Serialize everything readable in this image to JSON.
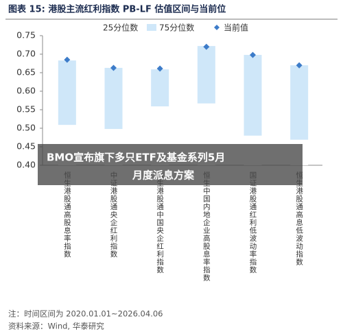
{
  "chart_data": {
    "type": "range_bar",
    "title": "图表 15:  港股主流红利指数 PB-LF 估值区间与当前位",
    "categories": [
      "恒生港股通高股息率指数",
      "中证港股通央企红利指数",
      "恒生港股通中国央企红利指数",
      "恒生中国内地企业高股息率指数",
      "国证港股通红利低波动率指数",
      "恒生港股通高息低波动指数"
    ],
    "series": [
      {
        "name": "25分位数",
        "color": "#ffffff",
        "values": [
          0.509,
          0.498,
          0.559,
          0.567,
          0.48,
          0.469
        ]
      },
      {
        "name": "75分位数",
        "color": "#cfe7f9",
        "values": [
          0.683,
          0.663,
          0.659,
          0.722,
          0.698,
          0.67
        ]
      },
      {
        "name": "当前值",
        "color": "#3d7cc9",
        "values": [
          0.685,
          0.663,
          0.661,
          0.72,
          0.698,
          0.67
        ]
      }
    ],
    "ylim": [
      0.4,
      0.75
    ],
    "yticks": [
      {
        "value": 0.4,
        "label": "0.40"
      },
      {
        "value": 0.45,
        "label": "0.45"
      },
      {
        "value": 0.5,
        "label": "0.50"
      },
      {
        "value": 0.55,
        "label": "0.55"
      },
      {
        "value": 0.6,
        "label": "0.60"
      },
      {
        "value": 0.65,
        "label": "0.65"
      },
      {
        "value": 0.7,
        "label": "0.70"
      },
      {
        "value": 0.75,
        "label": "0.75"
      }
    ],
    "note": "注：时间区间为 2020.01.01~2026.04.06",
    "source": "资料来源：Wind, 华泰研究"
  },
  "banner": {
    "lines": [
      "BMO宣布旗下多只ETF及基金系列5月",
      "月度派息方案"
    ]
  }
}
